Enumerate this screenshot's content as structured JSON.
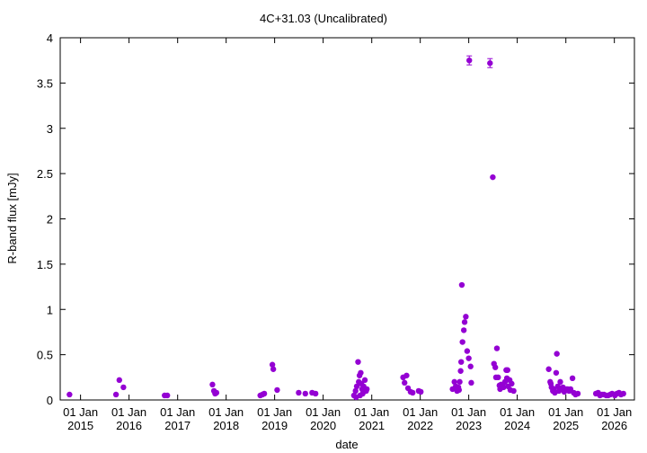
{
  "chart_data": {
    "type": "scatter",
    "title": "4C+31.03 (Uncalibrated)",
    "xlabel": "date",
    "ylabel": "R-band flux [mJy]",
    "ylim": [
      0,
      4
    ],
    "yticks": [
      0,
      0.5,
      1,
      1.5,
      2,
      2.5,
      3,
      3.5,
      4
    ],
    "ytick_labels": [
      "0",
      "0.5",
      "1",
      "1.5",
      "2",
      "2.5",
      "3",
      "3.5",
      "4"
    ],
    "xlim": [
      "2014-08-01",
      "2026-06-01"
    ],
    "xticks": [
      "2015-01-01",
      "2016-01-01",
      "2017-01-01",
      "2018-01-01",
      "2019-01-01",
      "2020-01-01",
      "2021-01-01",
      "2022-01-01",
      "2023-01-01",
      "2024-01-01",
      "2025-01-01",
      "2026-01-01"
    ],
    "xtick_labels": [
      [
        "01 Jan",
        "2015"
      ],
      [
        "01 Jan",
        "2016"
      ],
      [
        "01 Jan",
        "2017"
      ],
      [
        "01 Jan",
        "2018"
      ],
      [
        "01 Jan",
        "2019"
      ],
      [
        "01 Jan",
        "2020"
      ],
      [
        "01 Jan",
        "2021"
      ],
      [
        "01 Jan",
        "2022"
      ],
      [
        "01 Jan",
        "2023"
      ],
      [
        "01 Jan",
        "2024"
      ],
      [
        "01 Jan",
        "2025"
      ],
      [
        "01 Jan",
        "2026"
      ]
    ],
    "grid": false,
    "marker_color": "#9400d3",
    "points": [
      [
        "2014-10-10",
        0.06
      ],
      [
        "2015-09-25",
        0.06
      ],
      [
        "2015-10-20",
        0.22
      ],
      [
        "2015-11-20",
        0.14
      ],
      [
        "2016-09-25",
        0.05
      ],
      [
        "2016-10-15",
        0.05
      ],
      [
        "2017-09-20",
        0.17
      ],
      [
        "2017-10-01",
        0.1
      ],
      [
        "2017-10-10",
        0.07
      ],
      [
        "2017-10-20",
        0.08
      ],
      [
        "2018-09-15",
        0.05
      ],
      [
        "2018-10-01",
        0.06
      ],
      [
        "2018-10-15",
        0.07
      ],
      [
        "2018-12-15",
        0.39
      ],
      [
        "2018-12-22",
        0.34
      ],
      [
        "2019-01-20",
        0.11
      ],
      [
        "2019-07-01",
        0.08
      ],
      [
        "2019-08-20",
        0.07
      ],
      [
        "2019-10-10",
        0.08
      ],
      [
        "2019-11-05",
        0.07
      ],
      [
        "2020-08-20",
        0.05
      ],
      [
        "2020-09-01",
        0.1
      ],
      [
        "2020-09-10",
        0.15
      ],
      [
        "2020-09-20",
        0.42
      ],
      [
        "2020-09-25",
        0.2
      ],
      [
        "2020-10-01",
        0.27
      ],
      [
        "2020-10-10",
        0.3
      ],
      [
        "2020-10-15",
        0.18
      ],
      [
        "2020-10-20",
        0.12
      ],
      [
        "2020-10-25",
        0.07
      ],
      [
        "2020-11-01",
        0.15
      ],
      [
        "2020-11-10",
        0.22
      ],
      [
        "2020-11-20",
        0.1
      ],
      [
        "2020-09-05",
        0.03
      ],
      [
        "2020-10-05",
        0.05
      ],
      [
        "2020-11-25",
        0.12
      ],
      [
        "2021-08-25",
        0.25
      ],
      [
        "2021-09-05",
        0.19
      ],
      [
        "2021-09-20",
        0.27
      ],
      [
        "2021-10-01",
        0.13
      ],
      [
        "2021-10-20",
        0.09
      ],
      [
        "2021-11-05",
        0.08
      ],
      [
        "2021-12-20",
        0.1
      ],
      [
        "2022-01-05",
        0.09
      ],
      [
        "2022-09-01",
        0.12
      ],
      [
        "2022-09-15",
        0.2
      ],
      [
        "2022-09-25",
        0.15
      ],
      [
        "2022-10-05",
        0.1
      ],
      [
        "2022-10-15",
        0.14
      ],
      [
        "2022-10-25",
        0.2
      ],
      [
        "2022-11-01",
        0.32
      ],
      [
        "2022-11-05",
        0.42
      ],
      [
        "2022-11-10",
        1.27
      ],
      [
        "2022-11-15",
        0.64
      ],
      [
        "2022-11-25",
        0.77
      ],
      [
        "2022-12-01",
        0.86
      ],
      [
        "2022-12-10",
        0.92
      ],
      [
        "2022-12-20",
        0.54
      ],
      [
        "2023-01-01",
        0.46
      ],
      [
        "2023-01-05",
        3.75
      ],
      [
        "2023-01-15",
        0.37
      ],
      [
        "2023-01-20",
        0.19
      ],
      [
        "2022-10-20",
        0.11
      ],
      [
        "2023-06-10",
        3.72
      ],
      [
        "2023-07-01",
        2.46
      ],
      [
        "2023-07-10",
        0.4
      ],
      [
        "2023-07-20",
        0.36
      ],
      [
        "2023-07-25",
        0.25
      ],
      [
        "2023-08-01",
        0.57
      ],
      [
        "2023-08-10",
        0.25
      ],
      [
        "2023-08-20",
        0.16
      ],
      [
        "2023-08-25",
        0.12
      ],
      [
        "2023-09-05",
        0.15
      ],
      [
        "2023-09-15",
        0.17
      ],
      [
        "2023-09-20",
        0.14
      ],
      [
        "2023-10-01",
        0.2
      ],
      [
        "2023-10-10",
        0.33
      ],
      [
        "2023-10-15",
        0.24
      ],
      [
        "2023-10-20",
        0.33
      ],
      [
        "2023-10-25",
        0.15
      ],
      [
        "2023-11-05",
        0.22
      ],
      [
        "2023-11-10",
        0.11
      ],
      [
        "2023-11-20",
        0.18
      ],
      [
        "2023-12-05",
        0.1
      ],
      [
        "2023-09-01",
        0.17
      ],
      [
        "2024-08-25",
        0.34
      ],
      [
        "2024-09-05",
        0.2
      ],
      [
        "2024-09-10",
        0.18
      ],
      [
        "2024-09-15",
        0.14
      ],
      [
        "2024-09-25",
        0.1
      ],
      [
        "2024-10-01",
        0.12
      ],
      [
        "2024-10-10",
        0.08
      ],
      [
        "2024-10-20",
        0.3
      ],
      [
        "2024-10-25",
        0.51
      ],
      [
        "2024-11-01",
        0.15
      ],
      [
        "2024-11-10",
        0.1
      ],
      [
        "2024-11-20",
        0.2
      ],
      [
        "2024-11-25",
        0.13
      ],
      [
        "2024-12-01",
        0.12
      ],
      [
        "2024-12-10",
        0.14
      ],
      [
        "2024-12-20",
        0.09
      ],
      [
        "2025-01-05",
        0.12
      ],
      [
        "2025-01-15",
        0.12
      ],
      [
        "2025-01-25",
        0.1
      ],
      [
        "2025-02-05",
        0.12
      ],
      [
        "2025-02-20",
        0.24
      ],
      [
        "2025-03-01",
        0.08
      ],
      [
        "2025-03-15",
        0.06
      ],
      [
        "2025-04-01",
        0.07
      ],
      [
        "2025-08-15",
        0.07
      ],
      [
        "2025-09-01",
        0.08
      ],
      [
        "2025-09-15",
        0.05
      ],
      [
        "2025-10-01",
        0.06
      ],
      [
        "2025-10-15",
        0.06
      ],
      [
        "2025-11-01",
        0.05
      ],
      [
        "2025-11-15",
        0.05
      ],
      [
        "2025-12-01",
        0.06
      ],
      [
        "2025-12-15",
        0.07
      ],
      [
        "2026-01-05",
        0.05
      ],
      [
        "2026-01-20",
        0.07
      ],
      [
        "2026-02-05",
        0.08
      ],
      [
        "2026-02-20",
        0.06
      ],
      [
        "2026-03-10",
        0.07
      ]
    ]
  }
}
